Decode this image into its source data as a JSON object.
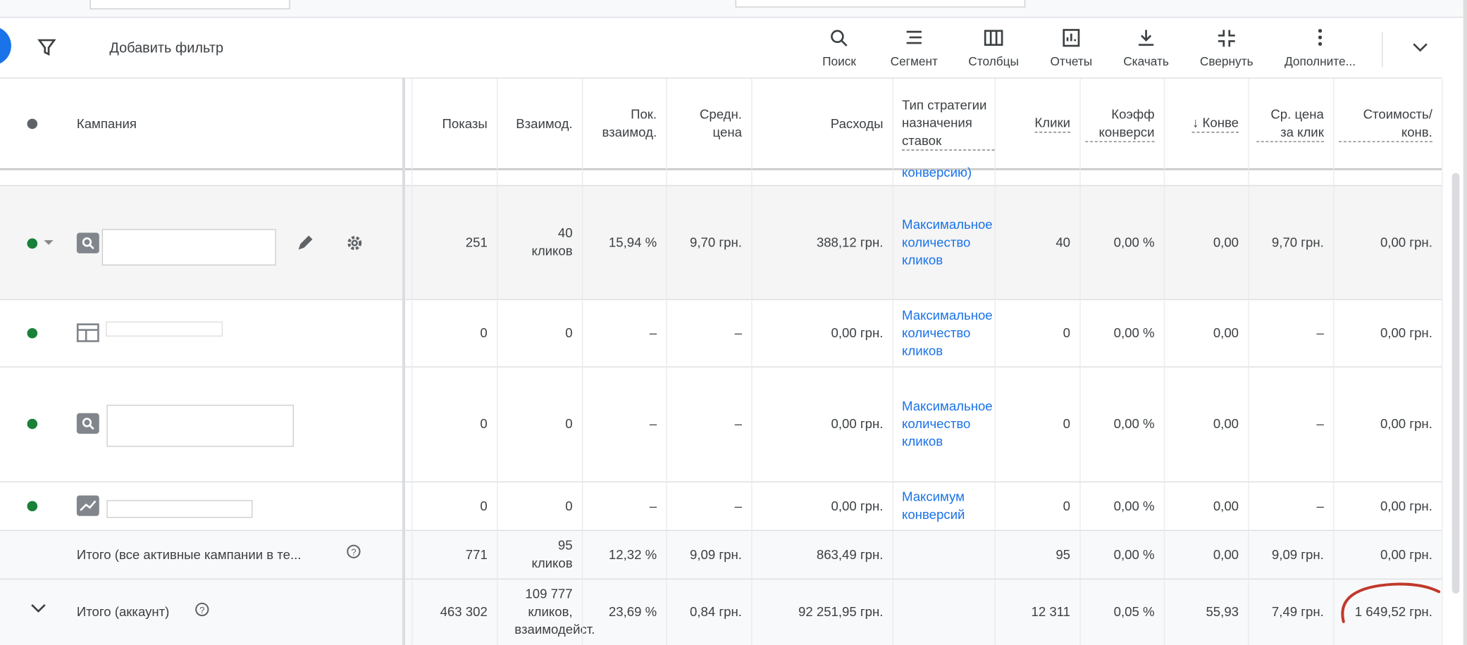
{
  "toolbar": {
    "filter": "Добавить фильтр",
    "buttons": [
      "Поиск",
      "Сегмент",
      "Столбцы",
      "Отчеты",
      "Скачать",
      "Свернуть",
      "Дополните..."
    ]
  },
  "table": {
    "header": {
      "campaign": "Кампания",
      "impressions": "Показы",
      "interactions": "Взаимод.",
      "interaction_rate": "Пок. взаимод.",
      "avg_cost": "Средн. цена",
      "cost": "Расходы",
      "strategy": "Тип стратегии назначения ставок",
      "clicks": "Клики",
      "conv_rate": "Коэфф конверси",
      "conversions": "↓ Конве",
      "avg_cpc": "Ср. цена за клик",
      "cost_per_conv": "Стоимость/ конв."
    },
    "partial_row_text": "конверсию)",
    "rows": [
      {
        "impressions": "251",
        "interactions": "40 кликов",
        "interaction_rate": "15,94 %",
        "avg_cost": "9,70 грн.",
        "cost": "388,12 грн.",
        "strategy": "Максимальное количество кликов",
        "clicks": "40",
        "conv_rate": "0,00 %",
        "conversions": "0,00",
        "avg_cpc": "9,70 грн.",
        "cost_per_conv": "0,00 грн."
      },
      {
        "impressions": "0",
        "interactions": "0",
        "interaction_rate": "–",
        "avg_cost": "–",
        "cost": "0,00 грн.",
        "strategy": "Максимальное количество кликов",
        "clicks": "0",
        "conv_rate": "0,00 %",
        "conversions": "0,00",
        "avg_cpc": "–",
        "cost_per_conv": "0,00 грн."
      },
      {
        "impressions": "0",
        "interactions": "0",
        "interaction_rate": "–",
        "avg_cost": "–",
        "cost": "0,00 грн.",
        "strategy": "Максимальное количество кликов",
        "clicks": "0",
        "conv_rate": "0,00 %",
        "conversions": "0,00",
        "avg_cpc": "–",
        "cost_per_conv": "0,00 грн."
      },
      {
        "impressions": "0",
        "interactions": "0",
        "interaction_rate": "–",
        "avg_cost": "–",
        "cost": "0,00 грн.",
        "strategy": "Максимум конверсий",
        "clicks": "0",
        "conv_rate": "0,00 %",
        "conversions": "0,00",
        "avg_cpc": "–",
        "cost_per_conv": "0,00 грн."
      },
      {
        "name": "Итого (все активные кампании в те...",
        "impressions": "771",
        "interactions": "95 кликов",
        "interaction_rate": "12,32 %",
        "avg_cost": "9,09 грн.",
        "cost": "863,49 грн.",
        "clicks": "95",
        "conv_rate": "0,00 %",
        "conversions": "0,00",
        "avg_cpc": "9,09 грн.",
        "cost_per_conv": "0,00 грн."
      },
      {
        "name": "Итого (аккаунт)",
        "impressions": "463 302",
        "interactions": "109 777 кликов, взаимодейст.",
        "interaction_rate": "23,69 %",
        "avg_cost": "0,84 грн.",
        "cost": "92 251,95 грн.",
        "clicks": "12 311",
        "conv_rate": "0,05 %",
        "conversions": "55,93",
        "avg_cpc": "7,49 грн.",
        "cost_per_conv": "1 649,52 грн."
      }
    ]
  }
}
